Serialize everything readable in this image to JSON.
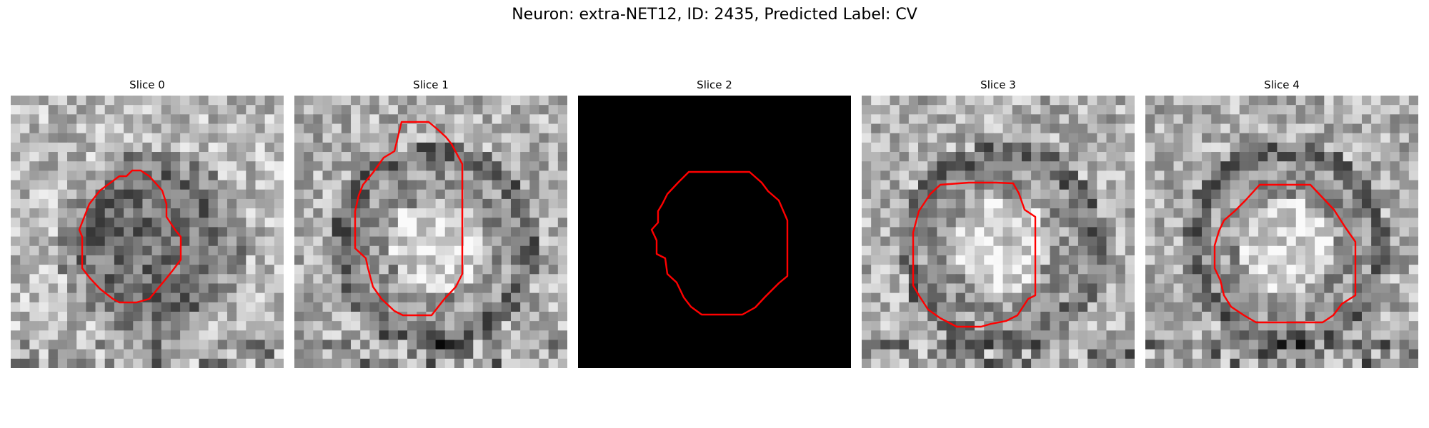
{
  "figure": {
    "title": "Neuron: extra-NET12, ID: 2435, Predicted Label: CV"
  },
  "panels": [
    {
      "title": "Slice 0",
      "blank": false,
      "seed": 11,
      "center": "dark",
      "contour_color": "#ff0000"
    },
    {
      "title": "Slice 1",
      "blank": false,
      "seed": 23,
      "center": "bright",
      "contour_color": "#ff0000"
    },
    {
      "title": "Slice 2",
      "blank": true,
      "seed": 37,
      "center": "none",
      "contour_color": "#ff0000"
    },
    {
      "title": "Slice 3",
      "blank": false,
      "seed": 41,
      "center": "bright",
      "contour_color": "#ff0000"
    },
    {
      "title": "Slice 4",
      "blank": false,
      "seed": 59,
      "center": "bright",
      "contour_color": "#ff0000"
    }
  ]
}
